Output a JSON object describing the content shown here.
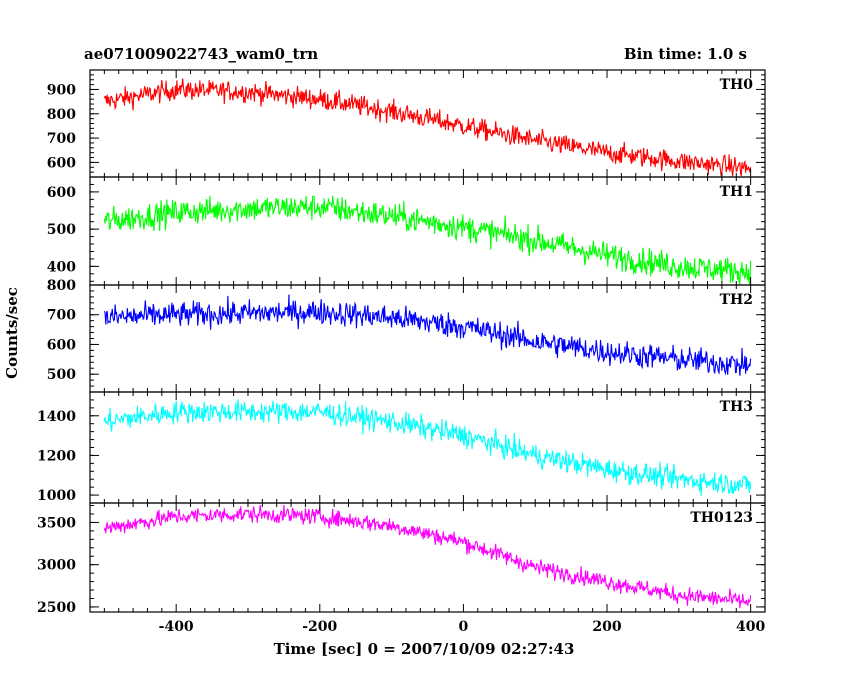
{
  "header": {
    "title": "ae071009022743_wam0_trn",
    "bin_time": "Bin time: 1.0 s"
  },
  "chart_data": {
    "type": "line",
    "title": "ae071009022743_wam0_trn",
    "subtitle": "Bin time: 1.0 s",
    "xlabel": "Time [sec] 0 = 2007/10/09 02:27:43",
    "ylabel": "Counts/sec",
    "xlim": [
      -520,
      420
    ],
    "x_ticks": [
      -400,
      -200,
      0,
      200,
      400
    ],
    "x_range": [
      -500,
      400
    ],
    "legend": "none",
    "grid": false,
    "panels": [
      {
        "name": "TH0",
        "color": "#ff0000",
        "ylim": [
          540,
          980
        ],
        "y_ticks": [
          600,
          700,
          800,
          900
        ],
        "trend": [
          [
            -500,
            850
          ],
          [
            -400,
            900
          ],
          [
            -300,
            890
          ],
          [
            -200,
            860
          ],
          [
            -100,
            810
          ],
          [
            0,
            750
          ],
          [
            100,
            690
          ],
          [
            200,
            640
          ],
          [
            300,
            605
          ],
          [
            400,
            575
          ]
        ],
        "noise": 30
      },
      {
        "name": "TH1",
        "color": "#00ff00",
        "ylim": [
          350,
          640
        ],
        "y_ticks": [
          400,
          500,
          600
        ],
        "trend": [
          [
            -500,
            520
          ],
          [
            -400,
            545
          ],
          [
            -300,
            555
          ],
          [
            -200,
            560
          ],
          [
            -100,
            535
          ],
          [
            0,
            505
          ],
          [
            100,
            470
          ],
          [
            200,
            430
          ],
          [
            300,
            400
          ],
          [
            400,
            385
          ]
        ],
        "noise": 25
      },
      {
        "name": "TH2",
        "color": "#0000ff",
        "ylim": [
          440,
          800
        ],
        "y_ticks": [
          500,
          600,
          700,
          800
        ],
        "trend": [
          [
            -500,
            690
          ],
          [
            -400,
            700
          ],
          [
            -300,
            705
          ],
          [
            -200,
            710
          ],
          [
            -100,
            690
          ],
          [
            0,
            660
          ],
          [
            100,
            610
          ],
          [
            200,
            575
          ],
          [
            300,
            550
          ],
          [
            400,
            530
          ]
        ],
        "noise": 30
      },
      {
        "name": "TH3",
        "color": "#00ffff",
        "ylim": [
          960,
          1520
        ],
        "y_ticks": [
          1000,
          1200,
          1400
        ],
        "trend": [
          [
            -500,
            1370
          ],
          [
            -400,
            1420
          ],
          [
            -300,
            1420
          ],
          [
            -200,
            1420
          ],
          [
            -100,
            1370
          ],
          [
            0,
            1300
          ],
          [
            100,
            1200
          ],
          [
            200,
            1130
          ],
          [
            300,
            1080
          ],
          [
            400,
            1050
          ]
        ],
        "noise": 40
      },
      {
        "name": "TH0123",
        "color": "#ff00ff",
        "ylim": [
          2440,
          3730
        ],
        "y_ticks": [
          2500,
          3000,
          3500
        ],
        "trend": [
          [
            -500,
            3430
          ],
          [
            -400,
            3570
          ],
          [
            -300,
            3600
          ],
          [
            -200,
            3570
          ],
          [
            -100,
            3460
          ],
          [
            0,
            3270
          ],
          [
            100,
            2970
          ],
          [
            200,
            2800
          ],
          [
            300,
            2640
          ],
          [
            400,
            2560
          ]
        ],
        "noise": 70
      }
    ]
  }
}
